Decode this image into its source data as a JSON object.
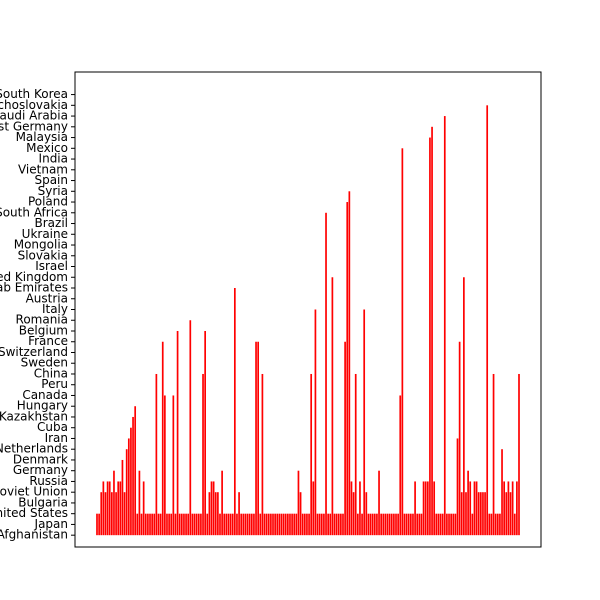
{
  "chart_data": {
    "type": "bar",
    "color": "#ff0000",
    "values": [
      2,
      2,
      4,
      5,
      4,
      5,
      5,
      4,
      6,
      4,
      5,
      5,
      7,
      4,
      8,
      9,
      10,
      11,
      12,
      2,
      6,
      2,
      5,
      2,
      2,
      2,
      2,
      2,
      15,
      2,
      2,
      18,
      13,
      2,
      2,
      2,
      13,
      2,
      19,
      2,
      2,
      2,
      2,
      2,
      20,
      2,
      2,
      2,
      2,
      2,
      15,
      19,
      2,
      4,
      5,
      5,
      4,
      4,
      2,
      6,
      2,
      2,
      2,
      2,
      2,
      23,
      2,
      4,
      2,
      2,
      2,
      2,
      2,
      2,
      2,
      18,
      18,
      2,
      15,
      2,
      2,
      2,
      2,
      2,
      2,
      2,
      2,
      2,
      2,
      2,
      2,
      2,
      2,
      2,
      2,
      6,
      4,
      2,
      2,
      2,
      2,
      15,
      5,
      21,
      2,
      2,
      2,
      2,
      30,
      2,
      2,
      24,
      2,
      2,
      2,
      2,
      2,
      18,
      31,
      32,
      5,
      4,
      15,
      2,
      5,
      2,
      21,
      4,
      2,
      2,
      2,
      2,
      2,
      6,
      2,
      2,
      2,
      2,
      2,
      2,
      2,
      2,
      2,
      13,
      36,
      2,
      2,
      2,
      2,
      2,
      5,
      2,
      2,
      2,
      5,
      5,
      5,
      37,
      38,
      5,
      2,
      2,
      2,
      2,
      39,
      2,
      2,
      2,
      2,
      2,
      9,
      18,
      4,
      24,
      4,
      6,
      5,
      2,
      5,
      5,
      4,
      4,
      4,
      4,
      40,
      2,
      2,
      15,
      2,
      2,
      2,
      8,
      5,
      4,
      5,
      4,
      5,
      2,
      5,
      15
    ],
    "ylim": [
      -1.1,
      43.1
    ],
    "yticks": [
      {
        "value": 0,
        "label": "Afghanistan"
      },
      {
        "value": 1,
        "label": "Japan"
      },
      {
        "value": 2,
        "label": "United States"
      },
      {
        "value": 3,
        "label": "Bulgaria"
      },
      {
        "value": 4,
        "label": "Soviet Union"
      },
      {
        "value": 5,
        "label": "Russia"
      },
      {
        "value": 6,
        "label": "Germany"
      },
      {
        "value": 7,
        "label": "Denmark"
      },
      {
        "value": 8,
        "label": "Netherlands"
      },
      {
        "value": 9,
        "label": "Iran"
      },
      {
        "value": 10,
        "label": "Cuba"
      },
      {
        "value": 11,
        "label": "Kazakhstan"
      },
      {
        "value": 12,
        "label": "Hungary"
      },
      {
        "value": 13,
        "label": "Canada"
      },
      {
        "value": 14,
        "label": "Peru"
      },
      {
        "value": 15,
        "label": "China"
      },
      {
        "value": 16,
        "label": "Sweden"
      },
      {
        "value": 17,
        "label": "Switzerland"
      },
      {
        "value": 18,
        "label": "France"
      },
      {
        "value": 19,
        "label": "Belgium"
      },
      {
        "value": 20,
        "label": "Romania"
      },
      {
        "value": 21,
        "label": "Italy"
      },
      {
        "value": 22,
        "label": "Austria"
      },
      {
        "value": 23,
        "label": "United Arab Emirates"
      },
      {
        "value": 24,
        "label": "United Kingdom"
      },
      {
        "value": 25,
        "label": "Israel"
      },
      {
        "value": 26,
        "label": "Slovakia"
      },
      {
        "value": 27,
        "label": "Mongolia"
      },
      {
        "value": 28,
        "label": "Ukraine"
      },
      {
        "value": 29,
        "label": "Brazil"
      },
      {
        "value": 30,
        "label": "South Africa"
      },
      {
        "value": 31,
        "label": "Poland"
      },
      {
        "value": 32,
        "label": "Syria"
      },
      {
        "value": 33,
        "label": "Spain"
      },
      {
        "value": 34,
        "label": "Vietnam"
      },
      {
        "value": 35,
        "label": "India"
      },
      {
        "value": 36,
        "label": "Mexico"
      },
      {
        "value": 37,
        "label": "Malaysia"
      },
      {
        "value": 38,
        "label": "West Germany"
      },
      {
        "value": 39,
        "label": "Saudi Arabia"
      },
      {
        "value": 40,
        "label": "Czechoslovakia"
      },
      {
        "value": 41,
        "label": "South Korea"
      }
    ]
  }
}
